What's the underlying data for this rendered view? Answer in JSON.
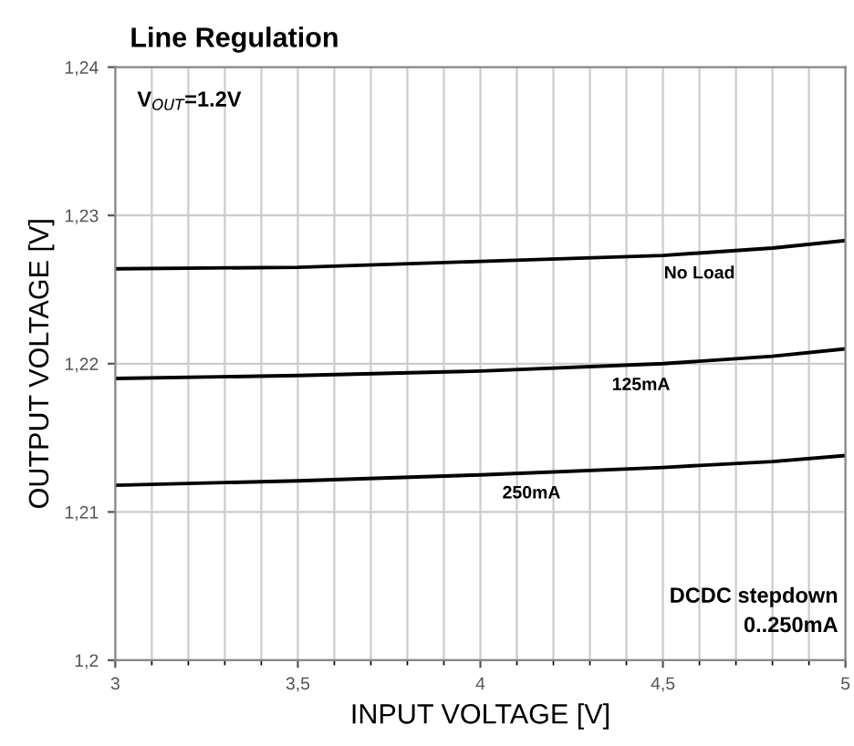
{
  "chart_data": {
    "type": "line",
    "title": "Line Regulation",
    "xlabel": "INPUT VOLTAGE [V]",
    "ylabel": "OUTPUT VOLTAGE [V]",
    "x": [
      3,
      3.5,
      4,
      4.5,
      4.8,
      5
    ],
    "series": [
      {
        "name": "No Load",
        "color": "#000000",
        "values": [
          1.2264,
          1.2265,
          1.2269,
          1.2273,
          1.2278,
          1.2283
        ]
      },
      {
        "name": "125mA",
        "color": "#000000",
        "values": [
          1.219,
          1.2192,
          1.2195,
          1.22,
          1.2205,
          1.221
        ]
      },
      {
        "name": "250mA",
        "color": "#000000",
        "values": [
          1.2118,
          1.2121,
          1.2125,
          1.213,
          1.2134,
          1.2138
        ]
      }
    ],
    "xlim": [
      3,
      5
    ],
    "xticks": [
      3,
      {
        "value": 3.5,
        "label": "3,5"
      },
      4,
      {
        "value": 4.5,
        "label": "4,5"
      },
      5
    ],
    "ylim": [
      1.2,
      1.24
    ],
    "yticks": [
      {
        "value": 1.2,
        "label": "1,2"
      },
      {
        "value": 1.21,
        "label": "1,21"
      },
      {
        "value": 1.22,
        "label": "1,22"
      },
      {
        "value": 1.23,
        "label": "1,23"
      },
      {
        "value": 1.24,
        "label": "1,24"
      }
    ],
    "grid": true,
    "marker": "none",
    "line_style": "solid",
    "annotations": [
      "V$_{OUT}$=1.2V",
      "DCDC stepdown\n0..250mA"
    ]
  }
}
